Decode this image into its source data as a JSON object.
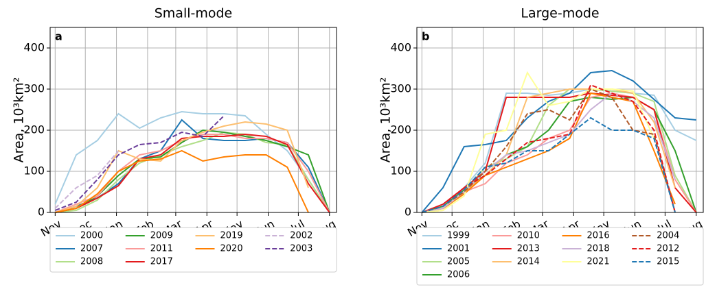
{
  "chart_data": [
    {
      "type": "line",
      "title": "Small-mode",
      "panel_label": "a",
      "ylabel": "Area, 10³km²",
      "grid": true,
      "legend": "below",
      "x": [
        0,
        21,
        42,
        63,
        84,
        105,
        126,
        147,
        168,
        189,
        210,
        231,
        252,
        273
      ],
      "xlim": [
        -5,
        280
      ],
      "xticks": [
        {
          "value": 0,
          "label": "Nov"
        },
        {
          "value": 30,
          "label": "Dec"
        },
        {
          "value": 61,
          "label": "Jan"
        },
        {
          "value": 92,
          "label": "Feb"
        },
        {
          "value": 120,
          "label": "Mar"
        },
        {
          "value": 151,
          "label": "Apr"
        },
        {
          "value": 181,
          "label": "May"
        },
        {
          "value": 212,
          "label": "Jun"
        },
        {
          "value": 242,
          "label": "Jul"
        },
        {
          "value": 273,
          "label": "Aug"
        }
      ],
      "ylim": [
        0,
        450
      ],
      "yticks": [
        0,
        100,
        200,
        300,
        400
      ],
      "series": [
        {
          "name": "2000",
          "color": "#a6cee3",
          "dashed": false,
          "values": [
            20,
            140,
            175,
            240,
            205,
            230,
            245,
            240,
            240,
            235,
            190,
            150,
            80,
            0
          ]
        },
        {
          "name": "2007",
          "color": "#1f78b4",
          "dashed": false,
          "values": [
            0,
            15,
            35,
            70,
            130,
            150,
            225,
            180,
            175,
            175,
            180,
            170,
            110,
            0
          ]
        },
        {
          "name": "2008",
          "color": "#b2df8a",
          "dashed": false,
          "values": [
            0,
            5,
            30,
            80,
            120,
            140,
            160,
            175,
            195,
            190,
            170,
            165,
            80,
            0
          ]
        },
        {
          "name": "2009",
          "color": "#33a02c",
          "dashed": false,
          "values": [
            0,
            10,
            40,
            90,
            130,
            135,
            170,
            200,
            195,
            185,
            175,
            160,
            140,
            0
          ]
        },
        {
          "name": "2011",
          "color": "#fb9a99",
          "dashed": false,
          "values": [
            0,
            20,
            40,
            100,
            140,
            150,
            175,
            190,
            190,
            180,
            180,
            170,
            100,
            0
          ]
        },
        {
          "name": "2017",
          "color": "#e31a1c",
          "dashed": false,
          "values": [
            0,
            10,
            35,
            65,
            130,
            140,
            180,
            185,
            185,
            190,
            185,
            165,
            70,
            0
          ]
        },
        {
          "name": "2019",
          "color": "#fdbf6f",
          "dashed": false,
          "values": [
            0,
            15,
            60,
            150,
            130,
            125,
            175,
            195,
            210,
            220,
            215,
            200,
            60,
            null
          ]
        },
        {
          "name": "2020",
          "color": "#ff7f00",
          "dashed": false,
          "values": [
            0,
            10,
            45,
            100,
            125,
            130,
            150,
            125,
            135,
            140,
            140,
            110,
            0,
            null
          ]
        },
        {
          "name": "2002",
          "color": "#cab2d6",
          "dashed": true,
          "values": [
            10,
            60,
            90,
            150,
            null,
            null,
            null,
            null,
            null,
            null,
            null,
            null,
            null,
            null
          ]
        },
        {
          "name": "2003",
          "color": "#6a3d9a",
          "dashed": true,
          "values": [
            5,
            25,
            80,
            140,
            165,
            170,
            195,
            185,
            235,
            null,
            null,
            null,
            null,
            null
          ]
        }
      ]
    },
    {
      "type": "line",
      "title": "Large-mode",
      "panel_label": "b",
      "ylabel": "Area, 10³km²",
      "grid": true,
      "legend": "below",
      "x": [
        0,
        21,
        42,
        63,
        84,
        105,
        126,
        147,
        168,
        189,
        210,
        231,
        252,
        273
      ],
      "xlim": [
        -5,
        280
      ],
      "xticks": [
        {
          "value": 0,
          "label": "Nov"
        },
        {
          "value": 30,
          "label": "Dec"
        },
        {
          "value": 61,
          "label": "Jan"
        },
        {
          "value": 92,
          "label": "Feb"
        },
        {
          "value": 120,
          "label": "Mar"
        },
        {
          "value": 151,
          "label": "Apr"
        },
        {
          "value": 181,
          "label": "May"
        },
        {
          "value": 212,
          "label": "Jun"
        },
        {
          "value": 242,
          "label": "Jul"
        },
        {
          "value": 273,
          "label": "Aug"
        }
      ],
      "ylim": [
        0,
        450
      ],
      "yticks": [
        0,
        100,
        200,
        300,
        400
      ],
      "series": [
        {
          "name": "1999",
          "color": "#a6cee3",
          "dashed": false,
          "values": [
            0,
            15,
            60,
            120,
            290,
            290,
            285,
            290,
            300,
            295,
            290,
            285,
            200,
            175
          ]
        },
        {
          "name": "2001",
          "color": "#1f78b4",
          "dashed": false,
          "values": [
            0,
            60,
            160,
            165,
            175,
            230,
            270,
            290,
            340,
            345,
            320,
            275,
            230,
            225
          ]
        },
        {
          "name": "2005",
          "color": "#b2df8a",
          "dashed": false,
          "values": [
            0,
            10,
            50,
            110,
            130,
            160,
            260,
            300,
            300,
            295,
            290,
            270,
            90,
            0
          ]
        },
        {
          "name": "2006",
          "color": "#33a02c",
          "dashed": false,
          "values": [
            0,
            15,
            55,
            90,
            140,
            160,
            200,
            270,
            280,
            275,
            280,
            250,
            150,
            0
          ]
        },
        {
          "name": "2010",
          "color": "#fb9a99",
          "dashed": false,
          "values": [
            0,
            10,
            50,
            70,
            120,
            140,
            180,
            200,
            280,
            290,
            280,
            250,
            80,
            0
          ]
        },
        {
          "name": "2013",
          "color": "#e31a1c",
          "dashed": false,
          "values": [
            0,
            20,
            60,
            100,
            280,
            280,
            280,
            280,
            290,
            285,
            280,
            250,
            60,
            0
          ]
        },
        {
          "name": "2014",
          "color": "#fdbf6f",
          "dashed": false,
          "values": [
            0,
            5,
            50,
            90,
            140,
            280,
            290,
            300,
            300,
            300,
            290,
            220,
            60,
            null
          ]
        },
        {
          "name": "2016",
          "color": "#ff7f00",
          "dashed": false,
          "values": [
            0,
            10,
            45,
            90,
            110,
            130,
            150,
            180,
            290,
            280,
            270,
            150,
            20,
            null
          ]
        },
        {
          "name": "2018",
          "color": "#cab2d6",
          "dashed": false,
          "values": [
            0,
            10,
            50,
            100,
            140,
            150,
            170,
            190,
            250,
            290,
            270,
            230,
            80,
            null
          ]
        },
        {
          "name": "2021",
          "color": "#ffff99",
          "dashed": false,
          "values": [
            0,
            5,
            40,
            190,
            200,
            340,
            260,
            270,
            300,
            300,
            295,
            180,
            null,
            null
          ]
        },
        {
          "name": "2004",
          "color": "#b15928",
          "dashed": true,
          "values": [
            0,
            15,
            50,
            100,
            160,
            240,
            250,
            225,
            300,
            280,
            200,
            190,
            0,
            null
          ]
        },
        {
          "name": "2012",
          "color": "#e31a1c",
          "dashed": true,
          "values": [
            0,
            15,
            60,
            90,
            130,
            170,
            180,
            190,
            310,
            290,
            270,
            200,
            0,
            null
          ]
        },
        {
          "name": "2015",
          "color": "#1f78b4",
          "dashed": true,
          "values": [
            0,
            15,
            55,
            110,
            120,
            150,
            150,
            190,
            230,
            200,
            200,
            180,
            0,
            null
          ]
        }
      ]
    }
  ]
}
